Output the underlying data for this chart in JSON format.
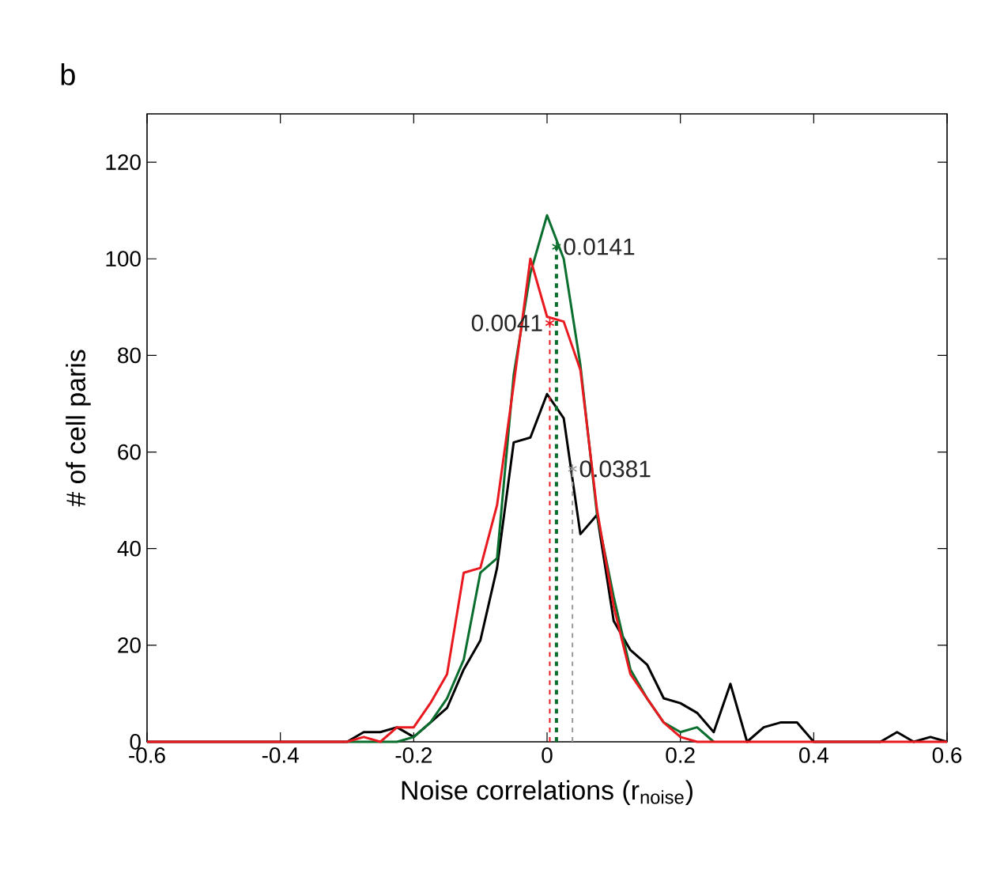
{
  "chart_data": {
    "type": "line",
    "xlabel": "Noise correlations (r$_{noise}$)",
    "ylabel": "# of cell paris",
    "xlim": [
      -0.6,
      0.6
    ],
    "ylim": [
      0,
      130
    ],
    "xticks": [
      -0.6,
      -0.4,
      -0.2,
      0,
      0.2,
      0.4,
      0.6
    ],
    "yticks": [
      0,
      20,
      40,
      60,
      80,
      100,
      120
    ],
    "x": [
      -0.6,
      -0.575,
      -0.55,
      -0.525,
      -0.5,
      -0.475,
      -0.45,
      -0.425,
      -0.4,
      -0.375,
      -0.35,
      -0.325,
      -0.3,
      -0.275,
      -0.25,
      -0.225,
      -0.2,
      -0.175,
      -0.15,
      -0.125,
      -0.1,
      -0.075,
      -0.05,
      -0.025,
      0,
      0.025,
      0.05,
      0.075,
      0.1,
      0.125,
      0.15,
      0.175,
      0.2,
      0.225,
      0.25,
      0.275,
      0.3,
      0.325,
      0.35,
      0.375,
      0.4,
      0.425,
      0.45,
      0.475,
      0.5,
      0.525,
      0.55,
      0.575,
      0.6
    ],
    "series": [
      {
        "color": "#000000",
        "values": [
          0,
          0,
          0,
          0,
          0,
          0,
          0,
          0,
          0,
          0,
          0,
          0,
          0,
          2,
          2,
          3,
          1,
          4,
          7,
          15,
          21,
          36,
          62,
          63,
          72,
          67,
          43,
          47,
          25,
          19,
          16,
          9,
          8,
          6,
          2,
          12,
          0,
          3,
          4,
          4,
          0,
          0,
          0,
          0,
          0,
          2,
          0,
          1,
          0
        ]
      },
      {
        "color": "#0a6e2e",
        "values": [
          null,
          null,
          null,
          null,
          null,
          null,
          null,
          null,
          null,
          null,
          null,
          null,
          0,
          0,
          0,
          0,
          1,
          4,
          9,
          17,
          35,
          38,
          76,
          97,
          109,
          100,
          78,
          47,
          30,
          15,
          9,
          4,
          2,
          3,
          0,
          null,
          null,
          null,
          null,
          null,
          null,
          null,
          null,
          null,
          null,
          null,
          null,
          null,
          null
        ]
      },
      {
        "color": "#e8191f",
        "values": [
          0,
          0,
          0,
          0,
          0,
          0,
          0,
          0,
          0,
          0,
          0,
          0,
          0,
          1,
          0,
          3,
          3,
          8,
          14,
          35,
          36,
          49,
          74,
          100,
          88,
          87,
          77,
          48,
          28,
          14,
          9,
          4,
          1,
          0,
          0,
          0,
          0,
          0,
          0,
          0,
          0,
          0,
          0,
          0,
          0,
          0,
          0,
          0,
          0
        ]
      }
    ],
    "ref_lines": [
      {
        "axis": "x",
        "value": 0.0041,
        "color": "#e8191f",
        "line_style": "dashed"
      },
      {
        "axis": "x",
        "value": 0.0141,
        "color": "#0a6e2e",
        "line_style": "dashed"
      },
      {
        "axis": "x",
        "value": 0.0381,
        "color": "#999999",
        "line_style": "dashed"
      }
    ],
    "annotations": [
      "b",
      {
        "text": "0.0041",
        "x": 0.0041,
        "y": 86.7
      },
      {
        "text": "0.0141",
        "x": 0.0141,
        "y": 102.5
      },
      {
        "text": "0.0381",
        "x": 0.0381,
        "y": 56.5
      }
    ],
    "grid": false,
    "marker": "none",
    "line_style": "solid"
  }
}
